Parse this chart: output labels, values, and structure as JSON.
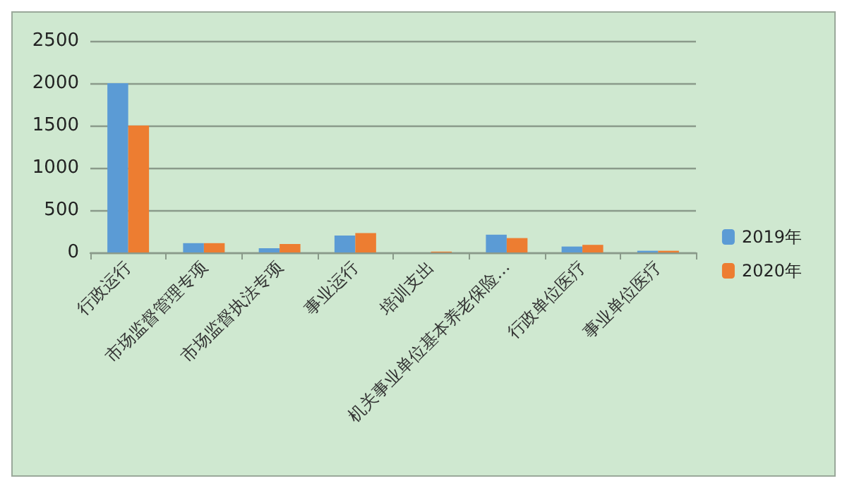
{
  "chart_data": {
    "type": "bar",
    "categories": [
      "行政运行",
      "市场监督管理专项",
      "市场监督执法专项",
      "事业运行",
      "培训支出",
      "机关事业单位基本养老保险…",
      "行政单位医疗",
      "事业单位医疗"
    ],
    "series": [
      {
        "name": "2019年",
        "color": "#5b9bd5",
        "values": [
          2000,
          110,
          50,
          200,
          0,
          210,
          70,
          20
        ]
      },
      {
        "name": "2020年",
        "color": "#ed7d31",
        "values": [
          1500,
          110,
          100,
          230,
          10,
          170,
          90,
          20
        ]
      }
    ],
    "ylim": [
      0,
      2500
    ],
    "yticks": [
      0,
      500,
      1000,
      1500,
      2000,
      2500
    ],
    "grid": "y",
    "legend": "right"
  }
}
